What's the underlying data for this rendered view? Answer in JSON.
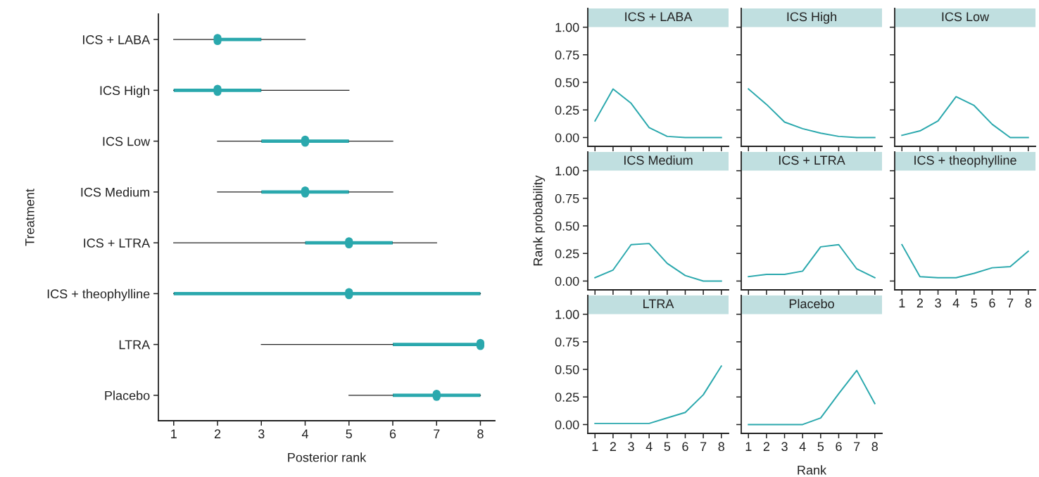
{
  "chart_data": [
    {
      "type": "box",
      "orientation": "horizontal",
      "xlabel": "Posterior rank",
      "ylabel": "Treatment",
      "categories": [
        "ICS + LABA",
        "ICS High",
        "ICS Low",
        "ICS Medium",
        "ICS + LTRA",
        "ICS + theophylline",
        "LTRA",
        "Placebo"
      ],
      "color": "#2aa8ad",
      "xlim": [
        0.65,
        8.33
      ],
      "xticks": [
        1,
        2,
        3,
        4,
        5,
        6,
        7,
        8
      ],
      "boxes": [
        {
          "low": 1,
          "q1": 2,
          "median": 2,
          "q3": 3,
          "high": 4
        },
        {
          "low": 1,
          "q1": 1,
          "median": 2,
          "q3": 3,
          "high": 5
        },
        {
          "low": 2,
          "q1": 3,
          "median": 4,
          "q3": 5,
          "high": 6
        },
        {
          "low": 2,
          "q1": 3,
          "median": 4,
          "q3": 5,
          "high": 6
        },
        {
          "low": 1,
          "q1": 4,
          "median": 5,
          "q3": 6,
          "high": 7
        },
        {
          "low": 1,
          "q1": 1,
          "median": 5,
          "q3": 8,
          "high": 8
        },
        {
          "low": 3,
          "q1": 6,
          "median": 8,
          "q3": 8,
          "high": 8
        },
        {
          "low": 5,
          "q1": 6,
          "median": 7,
          "q3": 8,
          "high": 8
        }
      ]
    },
    {
      "type": "line",
      "title": "ICS + LABA",
      "x": [
        1,
        2,
        3,
        4,
        5,
        6,
        7,
        8
      ],
      "xlim": [
        0.6,
        8.4
      ],
      "xticks": [
        1,
        2,
        3,
        4,
        5,
        6,
        7,
        8
      ],
      "ylim": [
        -0.08,
        1.17
      ],
      "yticks": [
        {
          "value": 0,
          "label": "0.00"
        },
        {
          "value": 0.25,
          "label": "0.25"
        },
        {
          "value": 0.5,
          "label": "0.50"
        },
        {
          "value": 0.75,
          "label": "0.75"
        },
        {
          "value": 1,
          "label": "1.00"
        }
      ],
      "tick_labels": "y",
      "series": [
        {
          "color": "#2aa8ad",
          "values": [
            0.15,
            0.44,
            0.31,
            0.09,
            0.01,
            0,
            0,
            0
          ]
        }
      ]
    },
    {
      "type": "line",
      "title": "ICS High",
      "x": [
        1,
        2,
        3,
        4,
        5,
        6,
        7,
        8
      ],
      "xlim": [
        0.6,
        8.4
      ],
      "xticks": [
        1,
        2,
        3,
        4,
        5,
        6,
        7,
        8
      ],
      "ylim": [
        -0.08,
        1.17
      ],
      "yticks": [
        {
          "value": 0,
          "label": null
        },
        {
          "value": 0.25,
          "label": null
        },
        {
          "value": 0.5,
          "label": null
        },
        {
          "value": 0.75,
          "label": null
        },
        {
          "value": 1,
          "label": null
        }
      ],
      "tick_labels": false,
      "series": [
        {
          "color": "#2aa8ad",
          "values": [
            0.44,
            0.3,
            0.14,
            0.08,
            0.04,
            0.01,
            0,
            0
          ]
        }
      ]
    },
    {
      "type": "line",
      "title": "ICS Low",
      "x": [
        1,
        2,
        3,
        4,
        5,
        6,
        7,
        8
      ],
      "xlim": [
        0.6,
        8.4
      ],
      "xticks": [
        1,
        2,
        3,
        4,
        5,
        6,
        7,
        8
      ],
      "ylim": [
        -0.08,
        1.17
      ],
      "yticks": [
        {
          "value": 0,
          "label": null
        },
        {
          "value": 0.25,
          "label": null
        },
        {
          "value": 0.5,
          "label": null
        },
        {
          "value": 0.75,
          "label": null
        },
        {
          "value": 1,
          "label": null
        }
      ],
      "tick_labels": false,
      "series": [
        {
          "color": "#2aa8ad",
          "values": [
            0.02,
            0.06,
            0.15,
            0.37,
            0.29,
            0.12,
            0,
            0
          ]
        }
      ]
    },
    {
      "type": "line",
      "title": "ICS Medium",
      "ylabel": "Rank probability",
      "x": [
        1,
        2,
        3,
        4,
        5,
        6,
        7,
        8
      ],
      "xlim": [
        0.6,
        8.4
      ],
      "xticks": [
        1,
        2,
        3,
        4,
        5,
        6,
        7,
        8
      ],
      "ylim": [
        -0.08,
        1.17
      ],
      "yticks": [
        {
          "value": 0,
          "label": "0.00"
        },
        {
          "value": 0.25,
          "label": "0.25"
        },
        {
          "value": 0.5,
          "label": "0.50"
        },
        {
          "value": 0.75,
          "label": "0.75"
        },
        {
          "value": 1,
          "label": "1.00"
        }
      ],
      "tick_labels": "y",
      "series": [
        {
          "color": "#2aa8ad",
          "values": [
            0.03,
            0.1,
            0.33,
            0.34,
            0.16,
            0.05,
            0,
            0
          ]
        }
      ]
    },
    {
      "type": "line",
      "title": "ICS + LTRA",
      "x": [
        1,
        2,
        3,
        4,
        5,
        6,
        7,
        8
      ],
      "xlim": [
        0.6,
        8.4
      ],
      "xticks": [
        1,
        2,
        3,
        4,
        5,
        6,
        7,
        8
      ],
      "ylim": [
        -0.08,
        1.17
      ],
      "yticks": [
        {
          "value": 0,
          "label": null
        },
        {
          "value": 0.25,
          "label": null
        },
        {
          "value": 0.5,
          "label": null
        },
        {
          "value": 0.75,
          "label": null
        },
        {
          "value": 1,
          "label": null
        }
      ],
      "tick_labels": false,
      "series": [
        {
          "color": "#2aa8ad",
          "values": [
            0.04,
            0.06,
            0.06,
            0.09,
            0.31,
            0.33,
            0.11,
            0.03
          ]
        }
      ]
    },
    {
      "type": "line",
      "title": "ICS + theophylline",
      "x": [
        1,
        2,
        3,
        4,
        5,
        6,
        7,
        8
      ],
      "xlim": [
        0.6,
        8.4
      ],
      "xticks": [
        1,
        2,
        3,
        4,
        5,
        6,
        7,
        8
      ],
      "ylim": [
        -0.08,
        1.17
      ],
      "yticks": [
        {
          "value": 0,
          "label": null
        },
        {
          "value": 0.25,
          "label": null
        },
        {
          "value": 0.5,
          "label": null
        },
        {
          "value": 0.75,
          "label": null
        },
        {
          "value": 1,
          "label": null
        }
      ],
      "tick_labels": "x",
      "series": [
        {
          "color": "#2aa8ad",
          "values": [
            0.33,
            0.04,
            0.03,
            0.03,
            0.07,
            0.12,
            0.13,
            0.27
          ]
        }
      ]
    },
    {
      "type": "line",
      "title": "LTRA",
      "x": [
        1,
        2,
        3,
        4,
        5,
        6,
        7,
        8
      ],
      "xlim": [
        0.6,
        8.4
      ],
      "xticks": [
        1,
        2,
        3,
        4,
        5,
        6,
        7,
        8
      ],
      "ylim": [
        -0.08,
        1.17
      ],
      "yticks": [
        {
          "value": 0,
          "label": "0.00"
        },
        {
          "value": 0.25,
          "label": "0.25"
        },
        {
          "value": 0.5,
          "label": "0.50"
        },
        {
          "value": 0.75,
          "label": "0.75"
        },
        {
          "value": 1,
          "label": "1.00"
        }
      ],
      "series": [
        {
          "color": "#2aa8ad",
          "values": [
            0.01,
            0.01,
            0.01,
            0.01,
            0.06,
            0.11,
            0.27,
            0.53
          ]
        }
      ]
    },
    {
      "type": "line",
      "title": "Placebo",
      "xlabel": "Rank",
      "x": [
        1,
        2,
        3,
        4,
        5,
        6,
        7,
        8
      ],
      "xlim": [
        0.6,
        8.4
      ],
      "xticks": [
        1,
        2,
        3,
        4,
        5,
        6,
        7,
        8
      ],
      "ylim": [
        -0.08,
        1.17
      ],
      "yticks": [
        {
          "value": 0,
          "label": null
        },
        {
          "value": 0.25,
          "label": null
        },
        {
          "value": 0.5,
          "label": null
        },
        {
          "value": 0.75,
          "label": null
        },
        {
          "value": 1,
          "label": null
        }
      ],
      "tick_labels": "x",
      "series": [
        {
          "color": "#2aa8ad",
          "values": [
            0,
            0,
            0,
            0,
            0.06,
            0.28,
            0.49,
            0.19
          ]
        }
      ]
    }
  ]
}
